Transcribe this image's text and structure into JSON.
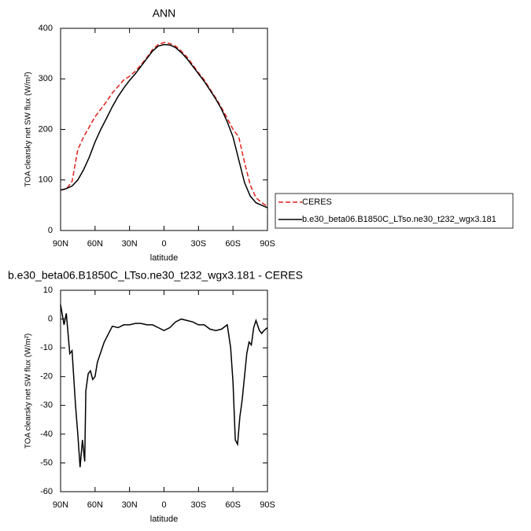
{
  "chart_data": [
    {
      "type": "line",
      "title": "ANN",
      "x_label": "latitude",
      "y_label": "TOA clearsky net SW flux (W/m²)",
      "x": [
        90,
        85,
        80,
        75,
        70,
        65,
        60,
        55,
        50,
        45,
        40,
        35,
        30,
        25,
        20,
        15,
        10,
        5,
        0,
        -5,
        -10,
        -15,
        -20,
        -25,
        -30,
        -35,
        -40,
        -45,
        -50,
        -55,
        -60,
        -65,
        -70,
        -75,
        -80,
        -85,
        -90
      ],
      "series": [
        {
          "name": "CERES",
          "color": "#e0201b",
          "dash": true,
          "values": [
            80,
            82,
            97,
            160,
            185,
            205,
            225,
            240,
            255,
            272,
            285,
            298,
            305,
            315,
            328,
            342,
            358,
            368,
            372,
            370,
            365,
            355,
            343,
            328,
            312,
            298,
            280,
            262,
            243,
            222,
            200,
            185,
            135,
            90,
            65,
            55,
            48
          ]
        },
        {
          "name": "b.e30_beta06.B1850C_LTso.ne30_t232_wgx3.181",
          "color": "#000000",
          "dash": false,
          "values": [
            80,
            83,
            88,
            100,
            120,
            145,
            175,
            200,
            222,
            245,
            265,
            282,
            297,
            310,
            325,
            340,
            355,
            365,
            368,
            367,
            362,
            352,
            340,
            325,
            310,
            295,
            278,
            260,
            240,
            215,
            185,
            140,
            95,
            68,
            55,
            50,
            45
          ]
        }
      ],
      "xlim": [
        90,
        -90
      ],
      "xticks": [
        {
          "value": 90,
          "label": "90N"
        },
        {
          "value": 60,
          "label": "60N"
        },
        {
          "value": 30,
          "label": "30N"
        },
        0,
        {
          "value": -30,
          "label": "30S"
        },
        {
          "value": -60,
          "label": "60S"
        },
        {
          "value": -90,
          "label": "90S"
        }
      ],
      "ylim": [
        0,
        400
      ],
      "yticks": [
        0,
        100,
        200,
        300,
        400
      ],
      "legend": "right"
    },
    {
      "type": "line",
      "title": "b.e30_beta06.B1850C_LTso.ne30_t232_wgx3.181 - CERES",
      "x_label": "latitude",
      "y_label": "TOA clearsky net SW flux (W/m²)",
      "x": [
        90,
        87,
        85,
        82,
        80,
        77,
        75,
        73,
        71,
        69,
        68,
        66,
        64,
        62,
        60,
        58,
        52,
        45,
        40,
        35,
        30,
        25,
        20,
        15,
        10,
        5,
        0,
        -5,
        -10,
        -15,
        -20,
        -25,
        -30,
        -35,
        -40,
        -45,
        -50,
        -55,
        -58,
        -60,
        -62,
        -64,
        -66,
        -68,
        -70,
        -72,
        -74,
        -76,
        -78,
        -80,
        -83,
        -85,
        -87,
        -90
      ],
      "values": [
        5,
        -2,
        2,
        -12,
        -11,
        -30,
        -40,
        -51.5,
        -42,
        -49.5,
        -25,
        -19,
        -18,
        -21,
        -20,
        -15,
        -8,
        -2.5,
        -3,
        -2,
        -2,
        -1.5,
        -1.5,
        -2,
        -2,
        -3,
        -4,
        -3,
        -1,
        0,
        -0.5,
        -1,
        -2,
        -2,
        -3.5,
        -4,
        -3.5,
        -2,
        -10,
        -22,
        -42,
        -43.5,
        -34,
        -28,
        -20,
        -12,
        -8,
        -9,
        -3,
        -0.5,
        -4,
        -5,
        -4,
        -3
      ],
      "color": "#000000",
      "xlim": [
        90,
        -90
      ],
      "xticks": [
        {
          "value": 90,
          "label": "90N"
        },
        {
          "value": 60,
          "label": "60N"
        },
        {
          "value": 30,
          "label": "30N"
        },
        0,
        {
          "value": -30,
          "label": "30S"
        },
        {
          "value": -60,
          "label": "60S"
        },
        {
          "value": -90,
          "label": "90S"
        }
      ],
      "ylim": [
        -60,
        10
      ],
      "yticks": [
        -60,
        -50,
        -40,
        -30,
        -20,
        -10,
        0,
        10
      ]
    }
  ]
}
